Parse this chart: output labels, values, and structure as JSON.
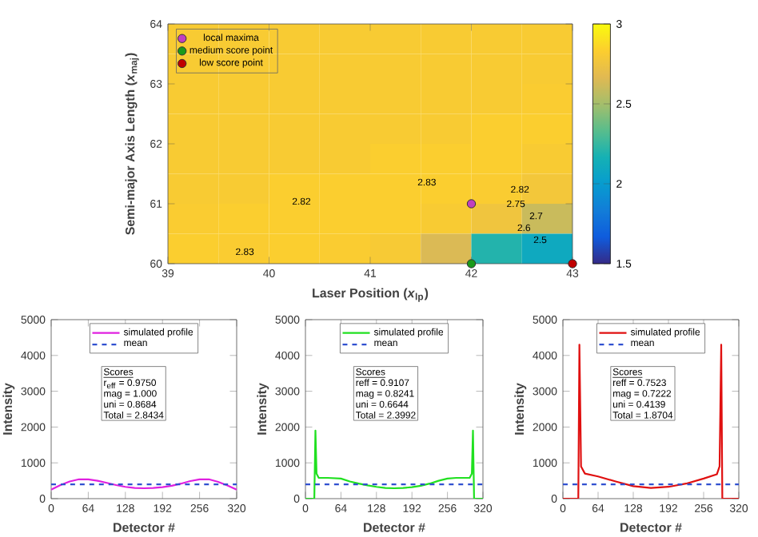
{
  "chart_data": [
    {
      "type": "heatmap",
      "xlabel": "Laser Position (*x*$_{lp}$)",
      "ylabel": "Semi-major Axis Length (*x*$_{maj}$)",
      "x": [
        39.25,
        39.75,
        40.25,
        40.75,
        41.25,
        41.75,
        42.25,
        42.75
      ],
      "cells": [
        [
          2.81,
          2.81,
          2.81,
          2.81,
          2.81,
          2.81,
          2.81,
          2.81
        ],
        [
          2.81,
          2.81,
          2.81,
          2.81,
          2.81,
          2.81,
          2.81,
          2.81
        ],
        [
          2.81,
          2.81,
          2.81,
          2.81,
          2.81,
          2.81,
          2.81,
          2.82
        ],
        [
          2.81,
          2.81,
          2.81,
          2.81,
          2.81,
          2.81,
          2.83,
          2.83
        ],
        [
          2.81,
          2.81,
          2.81,
          2.81,
          2.83,
          2.83,
          2.83,
          2.81
        ],
        [
          2.81,
          2.81,
          2.83,
          2.83,
          2.83,
          2.83,
          2.82,
          2.78
        ],
        [
          2.82,
          2.83,
          2.83,
          2.83,
          2.83,
          2.81,
          2.76,
          2.6
        ],
        [
          2.83,
          2.82,
          2.83,
          2.82,
          2.8,
          2.65,
          2.2,
          2.1
        ]
      ],
      "xlim": [
        39,
        43
      ],
      "xticks": [
        39,
        40,
        41,
        42,
        43
      ],
      "ylim": [
        60,
        64
      ],
      "yticks": [
        60,
        61,
        62,
        63,
        64
      ],
      "clim": [
        1.5,
        3
      ],
      "cticks": [
        1.5,
        2,
        2.5,
        3
      ],
      "series": [
        {
          "type": "scatter",
          "name": "local maxima",
          "color": "#c040c0",
          "x": [
            42
          ],
          "values": [
            61
          ]
        },
        {
          "type": "scatter",
          "name": "medium score point",
          "color": "#1a9a1a",
          "x": [
            42
          ],
          "values": [
            60
          ]
        },
        {
          "type": "scatter",
          "name": "low score point",
          "color": "#c00000",
          "x": [
            43
          ],
          "values": [
            60
          ]
        }
      ],
      "marker": "circle",
      "legend": "top left",
      "annotations": [
        "2.82",
        "2.83",
        "2.83",
        "2.82",
        "2.75",
        "2.7",
        "2.6",
        "2.5"
      ]
    },
    {
      "type": "line",
      "xlabel": "Detector #",
      "ylabel": "Intensity",
      "xlim": [
        0,
        320
      ],
      "xticks": [
        0,
        64,
        128,
        192,
        256,
        320
      ],
      "ylim": [
        0,
        5000
      ],
      "yticks": [
        0,
        1000,
        2000,
        3000,
        4000,
        5000
      ],
      "legend": "top",
      "marker": "none",
      "series": [
        {
          "name": "simulated profile",
          "color": "#e020e0",
          "line_style": "solid",
          "x": [
            0,
            16,
            32,
            48,
            64,
            80,
            96,
            112,
            128,
            144,
            160,
            176,
            192,
            208,
            224,
            240,
            256,
            272,
            288,
            304,
            320
          ],
          "values": [
            250,
            380,
            480,
            540,
            540,
            500,
            440,
            380,
            330,
            300,
            290,
            300,
            320,
            360,
            420,
            490,
            540,
            540,
            470,
            370,
            250
          ]
        },
        {
          "name": "mean",
          "color": "#3050d0",
          "line_style": "dashed",
          "x": [
            0,
            320
          ],
          "values": [
            400,
            400
          ]
        }
      ],
      "annotations": [
        "Scores",
        "r$_{eff}$ = 0.9750",
        "mag = 1.000",
        "uni = 0.8684",
        "Total = 2.8434"
      ]
    },
    {
      "type": "line",
      "xlabel": "Detector #",
      "ylabel": "Intensity",
      "xlim": [
        0,
        320
      ],
      "xticks": [
        0,
        64,
        128,
        192,
        256,
        320
      ],
      "ylim": [
        0,
        5000
      ],
      "yticks": [
        0,
        1000,
        2000,
        3000,
        4000,
        5000
      ],
      "legend": "top",
      "marker": "none",
      "series": [
        {
          "name": "simulated profile",
          "color": "#20e020",
          "line_style": "solid",
          "x": [
            0,
            16,
            18,
            20,
            24,
            40,
            64,
            80,
            96,
            112,
            128,
            144,
            160,
            176,
            192,
            208,
            224,
            240,
            256,
            272,
            296,
            300,
            302,
            304,
            320
          ],
          "values": [
            0,
            0,
            1900,
            700,
            580,
            580,
            560,
            480,
            420,
            370,
            330,
            300,
            290,
            300,
            320,
            360,
            420,
            500,
            560,
            580,
            580,
            700,
            1900,
            0,
            0
          ]
        },
        {
          "name": "mean",
          "color": "#3050d0",
          "line_style": "dashed",
          "x": [
            0,
            320
          ],
          "values": [
            400,
            400
          ]
        }
      ],
      "annotations": [
        "Scores",
        "reff  = 0.9107",
        "mag = 0.8241",
        "uni = 0.6644",
        "Total = 2.3992"
      ]
    },
    {
      "type": "line",
      "xlabel": "Detector #",
      "ylabel": "Intensity",
      "xlim": [
        0,
        320
      ],
      "xticks": [
        0,
        64,
        128,
        192,
        256,
        320
      ],
      "ylim": [
        0,
        5000
      ],
      "yticks": [
        0,
        1000,
        2000,
        3000,
        4000,
        5000
      ],
      "legend": "top",
      "marker": "none",
      "series": [
        {
          "name": "simulated profile",
          "color": "#e01010",
          "line_style": "solid",
          "x": [
            0,
            28,
            30,
            33,
            40,
            64,
            96,
            128,
            160,
            192,
            224,
            256,
            280,
            285,
            288,
            290,
            320
          ],
          "values": [
            0,
            0,
            4300,
            900,
            700,
            620,
            480,
            350,
            300,
            330,
            420,
            560,
            680,
            900,
            4300,
            0,
            0
          ]
        },
        {
          "name": "mean",
          "color": "#3050d0",
          "line_style": "dashed",
          "x": [
            0,
            320
          ],
          "values": [
            400,
            400
          ]
        }
      ],
      "annotations": [
        "Scores",
        "reff  = 0.7523",
        "mag = 0.7222",
        "uni = 0.4139",
        "Total = 1.8704"
      ]
    }
  ]
}
